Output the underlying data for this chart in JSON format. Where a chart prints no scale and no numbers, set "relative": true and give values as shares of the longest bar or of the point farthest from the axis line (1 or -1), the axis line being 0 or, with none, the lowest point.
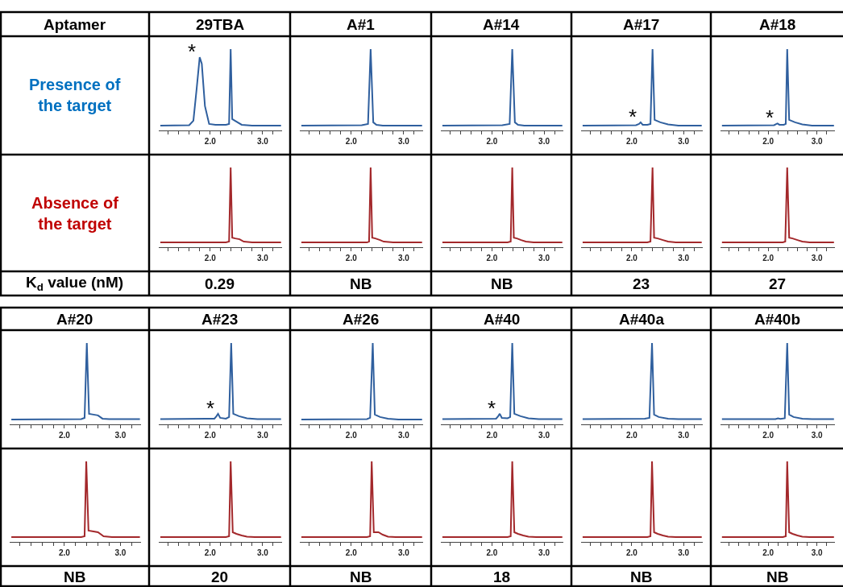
{
  "chart_data": [
    {
      "type": "other",
      "annotations": [
        "Aptamer",
        "Presence of the target",
        "Absence of the target",
        "K$_{d}$ value (nM)"
      ],
      "colors": [
        null,
        "#0070c0",
        "#c00000",
        null
      ]
    },
    {
      "type": "line",
      "title": "29TBA",
      "color": "#2f5f9e",
      "relative": true,
      "xlim": [
        1.02,
        3.37
      ],
      "xticks": [
        {
          "value": 1.2,
          "label": null
        },
        {
          "value": 1.4,
          "label": null
        },
        {
          "value": 1.6,
          "label": null
        },
        {
          "value": 1.8,
          "label": null
        },
        {
          "value": 2.0,
          "label": "2.0"
        },
        {
          "value": 2.2,
          "label": null
        },
        {
          "value": 2.4,
          "label": null
        },
        {
          "value": 2.6,
          "label": null
        },
        {
          "value": 2.8,
          "label": null
        },
        {
          "value": 3.0,
          "label": "3.0"
        },
        {
          "value": 3.2,
          "label": null
        }
      ],
      "x": [
        1.05,
        1.6,
        1.68,
        1.74,
        1.8,
        1.84,
        1.9,
        1.98,
        2.1,
        2.3,
        2.36,
        2.39,
        2.42,
        2.47,
        2.6,
        2.8,
        3.35
      ],
      "values": [
        0.06,
        0.065,
        0.12,
        0.5,
        0.9,
        0.82,
        0.3,
        0.08,
        0.07,
        0.07,
        0.08,
        1,
        0.14,
        0.12,
        0.07,
        0.06,
        0.06
      ],
      "annotations": [
        {
          "text": "*",
          "x": 1.8,
          "y": 0.9
        }
      ]
    },
    {
      "type": "line",
      "color": "#a3282b",
      "relative": true,
      "xlim": [
        1.02,
        3.37
      ],
      "xticks": [
        {
          "value": 1.2,
          "label": null
        },
        {
          "value": 1.4,
          "label": null
        },
        {
          "value": 1.6,
          "label": null
        },
        {
          "value": 1.8,
          "label": null
        },
        {
          "value": 2.0,
          "label": "2.0"
        },
        {
          "value": 2.2,
          "label": null
        },
        {
          "value": 2.4,
          "label": null
        },
        {
          "value": 2.6,
          "label": null
        },
        {
          "value": 2.8,
          "label": null
        },
        {
          "value": 3.0,
          "label": "3.0"
        },
        {
          "value": 3.2,
          "label": null
        }
      ],
      "x": [
        1.05,
        2.3,
        2.36,
        2.39,
        2.42,
        2.48,
        2.56,
        2.64,
        2.8,
        3.35
      ],
      "values": [
        0.06,
        0.06,
        0.07,
        1,
        0.12,
        0.11,
        0.1,
        0.07,
        0.06,
        0.06
      ],
      "annotations": [
        "0.29"
      ]
    },
    {
      "type": "line",
      "title": "A#1",
      "color": "#2f5f9e",
      "relative": true,
      "xlim": [
        1.02,
        3.37
      ],
      "xticks": [
        {
          "value": 1.2,
          "label": null
        },
        {
          "value": 1.4,
          "label": null
        },
        {
          "value": 1.6,
          "label": null
        },
        {
          "value": 1.8,
          "label": null
        },
        {
          "value": 2.0,
          "label": "2.0"
        },
        {
          "value": 2.2,
          "label": null
        },
        {
          "value": 2.4,
          "label": null
        },
        {
          "value": 2.6,
          "label": null
        },
        {
          "value": 2.8,
          "label": null
        },
        {
          "value": 3.0,
          "label": "3.0"
        },
        {
          "value": 3.2,
          "label": null
        }
      ],
      "x": [
        1.05,
        2.2,
        2.32,
        2.37,
        2.42,
        2.48,
        2.6,
        3.35
      ],
      "values": [
        0.06,
        0.065,
        0.08,
        1,
        0.1,
        0.07,
        0.06,
        0.06
      ]
    },
    {
      "type": "line",
      "color": "#a3282b",
      "relative": true,
      "xlim": [
        1.02,
        3.37
      ],
      "xticks": [
        {
          "value": 1.2,
          "label": null
        },
        {
          "value": 1.4,
          "label": null
        },
        {
          "value": 1.6,
          "label": null
        },
        {
          "value": 1.8,
          "label": null
        },
        {
          "value": 2.0,
          "label": "2.0"
        },
        {
          "value": 2.2,
          "label": null
        },
        {
          "value": 2.4,
          "label": null
        },
        {
          "value": 2.6,
          "label": null
        },
        {
          "value": 2.8,
          "label": null
        },
        {
          "value": 3.0,
          "label": "3.0"
        },
        {
          "value": 3.2,
          "label": null
        }
      ],
      "x": [
        1.05,
        2.3,
        2.34,
        2.37,
        2.4,
        2.46,
        2.55,
        2.62,
        2.8,
        3.35
      ],
      "values": [
        0.06,
        0.06,
        0.07,
        1,
        0.12,
        0.11,
        0.09,
        0.07,
        0.06,
        0.06
      ],
      "annotations": [
        "NB"
      ]
    },
    {
      "type": "line",
      "title": "A#14",
      "color": "#2f5f9e",
      "relative": true,
      "xlim": [
        1.02,
        3.37
      ],
      "xticks": [
        {
          "value": 1.2,
          "label": null
        },
        {
          "value": 1.4,
          "label": null
        },
        {
          "value": 1.6,
          "label": null
        },
        {
          "value": 1.8,
          "label": null
        },
        {
          "value": 2.0,
          "label": "2.0"
        },
        {
          "value": 2.2,
          "label": null
        },
        {
          "value": 2.4,
          "label": null
        },
        {
          "value": 2.6,
          "label": null
        },
        {
          "value": 2.8,
          "label": null
        },
        {
          "value": 3.0,
          "label": "3.0"
        },
        {
          "value": 3.2,
          "label": null
        }
      ],
      "x": [
        1.05,
        2.2,
        2.34,
        2.39,
        2.44,
        2.5,
        2.62,
        3.35
      ],
      "values": [
        0.06,
        0.065,
        0.08,
        1,
        0.1,
        0.07,
        0.06,
        0.06
      ]
    },
    {
      "type": "line",
      "color": "#a3282b",
      "relative": true,
      "xlim": [
        1.02,
        3.37
      ],
      "xticks": [
        {
          "value": 1.2,
          "label": null
        },
        {
          "value": 1.4,
          "label": null
        },
        {
          "value": 1.6,
          "label": null
        },
        {
          "value": 1.8,
          "label": null
        },
        {
          "value": 2.0,
          "label": "2.0"
        },
        {
          "value": 2.2,
          "label": null
        },
        {
          "value": 2.4,
          "label": null
        },
        {
          "value": 2.6,
          "label": null
        },
        {
          "value": 2.8,
          "label": null
        },
        {
          "value": 3.0,
          "label": "3.0"
        },
        {
          "value": 3.2,
          "label": null
        }
      ],
      "x": [
        1.05,
        2.3,
        2.36,
        2.39,
        2.42,
        2.48,
        2.56,
        2.65,
        2.8,
        3.35
      ],
      "values": [
        0.06,
        0.06,
        0.07,
        1,
        0.12,
        0.11,
        0.09,
        0.07,
        0.06,
        0.06
      ],
      "annotations": [
        "NB"
      ]
    },
    {
      "type": "line",
      "title": "A#17",
      "color": "#2f5f9e",
      "relative": true,
      "xlim": [
        1.02,
        3.37
      ],
      "xticks": [
        {
          "value": 1.2,
          "label": null
        },
        {
          "value": 1.4,
          "label": null
        },
        {
          "value": 1.6,
          "label": null
        },
        {
          "value": 1.8,
          "label": null
        },
        {
          "value": 2.0,
          "label": "2.0"
        },
        {
          "value": 2.2,
          "label": null
        },
        {
          "value": 2.4,
          "label": null
        },
        {
          "value": 2.6,
          "label": null
        },
        {
          "value": 2.8,
          "label": null
        },
        {
          "value": 3.0,
          "label": "3.0"
        },
        {
          "value": 3.2,
          "label": null
        }
      ],
      "x": [
        1.05,
        2.08,
        2.14,
        2.17,
        2.21,
        2.3,
        2.36,
        2.4,
        2.44,
        2.55,
        2.7,
        2.9,
        3.35
      ],
      "values": [
        0.06,
        0.065,
        0.08,
        0.1,
        0.07,
        0.07,
        0.08,
        1,
        0.13,
        0.1,
        0.075,
        0.06,
        0.06
      ],
      "annotations": [
        {
          "text": "*",
          "x": 2.17,
          "y": 0.1
        }
      ]
    },
    {
      "type": "line",
      "color": "#a3282b",
      "relative": true,
      "xlim": [
        1.02,
        3.37
      ],
      "xticks": [
        {
          "value": 1.2,
          "label": null
        },
        {
          "value": 1.4,
          "label": null
        },
        {
          "value": 1.6,
          "label": null
        },
        {
          "value": 1.8,
          "label": null
        },
        {
          "value": 2.0,
          "label": "2.0"
        },
        {
          "value": 2.2,
          "label": null
        },
        {
          "value": 2.4,
          "label": null
        },
        {
          "value": 2.6,
          "label": null
        },
        {
          "value": 2.8,
          "label": null
        },
        {
          "value": 3.0,
          "label": "3.0"
        },
        {
          "value": 3.2,
          "label": null
        }
      ],
      "x": [
        1.05,
        2.3,
        2.36,
        2.4,
        2.43,
        2.5,
        2.6,
        2.7,
        2.85,
        3.35
      ],
      "values": [
        0.06,
        0.06,
        0.07,
        1,
        0.12,
        0.11,
        0.09,
        0.07,
        0.06,
        0.06
      ],
      "annotations": [
        "23"
      ]
    },
    {
      "type": "line",
      "title": "A#18",
      "color": "#2f5f9e",
      "relative": true,
      "xlim": [
        1.02,
        3.37
      ],
      "xticks": [
        {
          "value": 1.2,
          "label": null
        },
        {
          "value": 1.4,
          "label": null
        },
        {
          "value": 1.6,
          "label": null
        },
        {
          "value": 1.8,
          "label": null
        },
        {
          "value": 2.0,
          "label": "2.0"
        },
        {
          "value": 2.2,
          "label": null
        },
        {
          "value": 2.4,
          "label": null
        },
        {
          "value": 2.6,
          "label": null
        },
        {
          "value": 2.8,
          "label": null
        },
        {
          "value": 3.0,
          "label": "3.0"
        },
        {
          "value": 3.2,
          "label": null
        }
      ],
      "x": [
        1.05,
        2.12,
        2.17,
        2.19,
        2.23,
        2.32,
        2.36,
        2.39,
        2.43,
        2.55,
        2.7,
        2.9,
        3.35
      ],
      "values": [
        0.06,
        0.065,
        0.08,
        0.085,
        0.07,
        0.07,
        0.08,
        1,
        0.13,
        0.1,
        0.075,
        0.06,
        0.06
      ],
      "annotations": [
        {
          "text": "*",
          "x": 2.19,
          "y": 0.085
        }
      ]
    },
    {
      "type": "line",
      "color": "#a3282b",
      "relative": true,
      "xlim": [
        1.02,
        3.37
      ],
      "xticks": [
        {
          "value": 1.2,
          "label": null
        },
        {
          "value": 1.4,
          "label": null
        },
        {
          "value": 1.6,
          "label": null
        },
        {
          "value": 1.8,
          "label": null
        },
        {
          "value": 2.0,
          "label": "2.0"
        },
        {
          "value": 2.2,
          "label": null
        },
        {
          "value": 2.4,
          "label": null
        },
        {
          "value": 2.6,
          "label": null
        },
        {
          "value": 2.8,
          "label": null
        },
        {
          "value": 3.0,
          "label": "3.0"
        },
        {
          "value": 3.2,
          "label": null
        }
      ],
      "x": [
        1.05,
        2.3,
        2.35,
        2.39,
        2.43,
        2.5,
        2.6,
        2.7,
        2.85,
        3.35
      ],
      "values": [
        0.06,
        0.06,
        0.07,
        1,
        0.12,
        0.11,
        0.09,
        0.07,
        0.06,
        0.06
      ],
      "annotations": [
        "27"
      ]
    },
    {
      "type": "line",
      "title": "A#20",
      "color": "#2f5f9e",
      "relative": true,
      "xlim": [
        1.02,
        3.37
      ],
      "xticks": [
        {
          "value": 1.2,
          "label": null
        },
        {
          "value": 1.4,
          "label": null
        },
        {
          "value": 1.6,
          "label": null
        },
        {
          "value": 1.8,
          "label": null
        },
        {
          "value": 2.0,
          "label": "2.0"
        },
        {
          "value": 2.2,
          "label": null
        },
        {
          "value": 2.4,
          "label": null
        },
        {
          "value": 2.6,
          "label": null
        },
        {
          "value": 2.8,
          "label": null
        },
        {
          "value": 3.0,
          "label": "3.0"
        },
        {
          "value": 3.2,
          "label": null
        }
      ],
      "x": [
        1.05,
        2.3,
        2.36,
        2.4,
        2.44,
        2.52,
        2.6,
        2.68,
        2.8,
        3.35
      ],
      "values": [
        0.06,
        0.065,
        0.08,
        1,
        0.13,
        0.12,
        0.11,
        0.07,
        0.065,
        0.065
      ]
    },
    {
      "type": "line",
      "color": "#a3282b",
      "relative": true,
      "xlim": [
        1.02,
        3.37
      ],
      "xticks": [
        {
          "value": 1.2,
          "label": null
        },
        {
          "value": 1.4,
          "label": null
        },
        {
          "value": 1.6,
          "label": null
        },
        {
          "value": 1.8,
          "label": null
        },
        {
          "value": 2.0,
          "label": "2.0"
        },
        {
          "value": 2.2,
          "label": null
        },
        {
          "value": 2.4,
          "label": null
        },
        {
          "value": 2.6,
          "label": null
        },
        {
          "value": 2.8,
          "label": null
        },
        {
          "value": 3.0,
          "label": "3.0"
        },
        {
          "value": 3.2,
          "label": null
        }
      ],
      "x": [
        1.05,
        2.3,
        2.36,
        2.39,
        2.43,
        2.52,
        2.6,
        2.7,
        2.85,
        3.35
      ],
      "values": [
        0.06,
        0.06,
        0.07,
        1,
        0.14,
        0.13,
        0.12,
        0.07,
        0.06,
        0.06
      ],
      "annotations": [
        "NB"
      ]
    },
    {
      "type": "line",
      "title": "A#23",
      "color": "#2f5f9e",
      "relative": true,
      "xlim": [
        1.02,
        3.37
      ],
      "xticks": [
        {
          "value": 1.2,
          "label": null
        },
        {
          "value": 1.4,
          "label": null
        },
        {
          "value": 1.6,
          "label": null
        },
        {
          "value": 1.8,
          "label": null
        },
        {
          "value": 2.0,
          "label": "2.0"
        },
        {
          "value": 2.2,
          "label": null
        },
        {
          "value": 2.4,
          "label": null
        },
        {
          "value": 2.6,
          "label": null
        },
        {
          "value": 2.8,
          "label": null
        },
        {
          "value": 3.0,
          "label": "3.0"
        },
        {
          "value": 3.2,
          "label": null
        }
      ],
      "x": [
        1.05,
        2.08,
        2.12,
        2.15,
        2.19,
        2.3,
        2.36,
        2.4,
        2.44,
        2.55,
        2.7,
        2.9,
        3.35
      ],
      "values": [
        0.065,
        0.07,
        0.1,
        0.13,
        0.08,
        0.07,
        0.09,
        1,
        0.13,
        0.1,
        0.075,
        0.065,
        0.065
      ],
      "annotations": [
        {
          "text": "*",
          "x": 2.15,
          "y": 0.13
        }
      ]
    },
    {
      "type": "line",
      "color": "#a3282b",
      "relative": true,
      "xlim": [
        1.02,
        3.37
      ],
      "xticks": [
        {
          "value": 1.2,
          "label": null
        },
        {
          "value": 1.4,
          "label": null
        },
        {
          "value": 1.6,
          "label": null
        },
        {
          "value": 1.8,
          "label": null
        },
        {
          "value": 2.0,
          "label": "2.0"
        },
        {
          "value": 2.2,
          "label": null
        },
        {
          "value": 2.4,
          "label": null
        },
        {
          "value": 2.6,
          "label": null
        },
        {
          "value": 2.8,
          "label": null
        },
        {
          "value": 3.0,
          "label": "3.0"
        },
        {
          "value": 3.2,
          "label": null
        }
      ],
      "x": [
        1.05,
        2.3,
        2.36,
        2.39,
        2.43,
        2.5,
        2.6,
        2.7,
        2.85,
        3.35
      ],
      "values": [
        0.06,
        0.06,
        0.07,
        1,
        0.12,
        0.1,
        0.08,
        0.065,
        0.06,
        0.06
      ],
      "annotations": [
        "20"
      ]
    },
    {
      "type": "line",
      "title": "A#26",
      "color": "#2f5f9e",
      "relative": true,
      "xlim": [
        1.02,
        3.37
      ],
      "xticks": [
        {
          "value": 1.2,
          "label": null
        },
        {
          "value": 1.4,
          "label": null
        },
        {
          "value": 1.6,
          "label": null
        },
        {
          "value": 1.8,
          "label": null
        },
        {
          "value": 2.0,
          "label": "2.0"
        },
        {
          "value": 2.2,
          "label": null
        },
        {
          "value": 2.4,
          "label": null
        },
        {
          "value": 2.6,
          "label": null
        },
        {
          "value": 2.8,
          "label": null
        },
        {
          "value": 3.0,
          "label": "3.0"
        },
        {
          "value": 3.2,
          "label": null
        }
      ],
      "x": [
        1.05,
        2.3,
        2.36,
        2.41,
        2.45,
        2.55,
        2.7,
        2.9,
        3.35
      ],
      "values": [
        0.06,
        0.065,
        0.08,
        1,
        0.12,
        0.09,
        0.07,
        0.06,
        0.06
      ]
    },
    {
      "type": "line",
      "color": "#a3282b",
      "relative": true,
      "xlim": [
        1.02,
        3.37
      ],
      "xticks": [
        {
          "value": 1.2,
          "label": null
        },
        {
          "value": 1.4,
          "label": null
        },
        {
          "value": 1.6,
          "label": null
        },
        {
          "value": 1.8,
          "label": null
        },
        {
          "value": 2.0,
          "label": "2.0"
        },
        {
          "value": 2.2,
          "label": null
        },
        {
          "value": 2.4,
          "label": null
        },
        {
          "value": 2.6,
          "label": null
        },
        {
          "value": 2.8,
          "label": null
        },
        {
          "value": 3.0,
          "label": "3.0"
        },
        {
          "value": 3.2,
          "label": null
        }
      ],
      "x": [
        1.05,
        2.3,
        2.36,
        2.39,
        2.43,
        2.52,
        2.6,
        2.7,
        2.85,
        3.35
      ],
      "values": [
        0.06,
        0.06,
        0.07,
        1,
        0.12,
        0.12,
        0.09,
        0.065,
        0.06,
        0.06
      ],
      "annotations": [
        "NB"
      ]
    },
    {
      "type": "line",
      "title": "A#40",
      "color": "#2f5f9e",
      "relative": true,
      "xlim": [
        1.02,
        3.37
      ],
      "xticks": [
        {
          "value": 1.2,
          "label": null
        },
        {
          "value": 1.4,
          "label": null
        },
        {
          "value": 1.6,
          "label": null
        },
        {
          "value": 1.8,
          "label": null
        },
        {
          "value": 2.0,
          "label": "2.0"
        },
        {
          "value": 2.2,
          "label": null
        },
        {
          "value": 2.4,
          "label": null
        },
        {
          "value": 2.6,
          "label": null
        },
        {
          "value": 2.8,
          "label": null
        },
        {
          "value": 3.0,
          "label": "3.0"
        },
        {
          "value": 3.2,
          "label": null
        }
      ],
      "x": [
        1.05,
        2.08,
        2.12,
        2.15,
        2.19,
        2.3,
        2.35,
        2.39,
        2.43,
        2.55,
        2.7,
        2.9,
        3.35
      ],
      "values": [
        0.065,
        0.07,
        0.1,
        0.13,
        0.08,
        0.075,
        0.09,
        1,
        0.13,
        0.1,
        0.075,
        0.065,
        0.065
      ],
      "annotations": [
        {
          "text": "*",
          "x": 2.15,
          "y": 0.13
        }
      ]
    },
    {
      "type": "line",
      "color": "#a3282b",
      "relative": true,
      "xlim": [
        1.02,
        3.37
      ],
      "xticks": [
        {
          "value": 1.2,
          "label": null
        },
        {
          "value": 1.4,
          "label": null
        },
        {
          "value": 1.6,
          "label": null
        },
        {
          "value": 1.8,
          "label": null
        },
        {
          "value": 2.0,
          "label": "2.0"
        },
        {
          "value": 2.2,
          "label": null
        },
        {
          "value": 2.4,
          "label": null
        },
        {
          "value": 2.6,
          "label": null
        },
        {
          "value": 2.8,
          "label": null
        },
        {
          "value": 3.0,
          "label": "3.0"
        },
        {
          "value": 3.2,
          "label": null
        }
      ],
      "x": [
        1.05,
        2.3,
        2.36,
        2.39,
        2.43,
        2.5,
        2.6,
        2.7,
        2.85,
        3.35
      ],
      "values": [
        0.06,
        0.06,
        0.07,
        1,
        0.12,
        0.1,
        0.08,
        0.065,
        0.06,
        0.06
      ],
      "annotations": [
        "18"
      ]
    },
    {
      "type": "line",
      "title": "A#40a",
      "color": "#2f5f9e",
      "relative": true,
      "xlim": [
        1.02,
        3.37
      ],
      "xticks": [
        {
          "value": 1.2,
          "label": null
        },
        {
          "value": 1.4,
          "label": null
        },
        {
          "value": 1.6,
          "label": null
        },
        {
          "value": 1.8,
          "label": null
        },
        {
          "value": 2.0,
          "label": "2.0"
        },
        {
          "value": 2.2,
          "label": null
        },
        {
          "value": 2.4,
          "label": null
        },
        {
          "value": 2.6,
          "label": null
        },
        {
          "value": 2.8,
          "label": null
        },
        {
          "value": 3.0,
          "label": "3.0"
        },
        {
          "value": 3.2,
          "label": null
        }
      ],
      "x": [
        1.05,
        2.25,
        2.34,
        2.39,
        2.43,
        2.52,
        2.7,
        2.9,
        3.35
      ],
      "values": [
        0.065,
        0.07,
        0.08,
        1,
        0.12,
        0.09,
        0.07,
        0.065,
        0.065
      ]
    },
    {
      "type": "line",
      "color": "#a3282b",
      "relative": true,
      "xlim": [
        1.02,
        3.37
      ],
      "xticks": [
        {
          "value": 1.2,
          "label": null
        },
        {
          "value": 1.4,
          "label": null
        },
        {
          "value": 1.6,
          "label": null
        },
        {
          "value": 1.8,
          "label": null
        },
        {
          "value": 2.0,
          "label": "2.0"
        },
        {
          "value": 2.2,
          "label": null
        },
        {
          "value": 2.4,
          "label": null
        },
        {
          "value": 2.6,
          "label": null
        },
        {
          "value": 2.8,
          "label": null
        },
        {
          "value": 3.0,
          "label": "3.0"
        },
        {
          "value": 3.2,
          "label": null
        }
      ],
      "x": [
        1.05,
        2.3,
        2.36,
        2.39,
        2.43,
        2.5,
        2.6,
        2.7,
        2.85,
        3.35
      ],
      "values": [
        0.06,
        0.06,
        0.07,
        1,
        0.12,
        0.1,
        0.08,
        0.065,
        0.06,
        0.06
      ],
      "annotations": [
        "NB"
      ]
    },
    {
      "type": "line",
      "title": "A#40b",
      "color": "#2f5f9e",
      "relative": true,
      "xlim": [
        1.02,
        3.37
      ],
      "xticks": [
        {
          "value": 1.2,
          "label": null
        },
        {
          "value": 1.4,
          "label": null
        },
        {
          "value": 1.6,
          "label": null
        },
        {
          "value": 1.8,
          "label": null
        },
        {
          "value": 2.0,
          "label": "2.0"
        },
        {
          "value": 2.2,
          "label": null
        },
        {
          "value": 2.4,
          "label": null
        },
        {
          "value": 2.6,
          "label": null
        },
        {
          "value": 2.8,
          "label": null
        },
        {
          "value": 3.0,
          "label": "3.0"
        },
        {
          "value": 3.2,
          "label": null
        }
      ],
      "x": [
        1.05,
        2.15,
        2.2,
        2.25,
        2.34,
        2.39,
        2.43,
        2.52,
        2.7,
        2.9,
        3.35
      ],
      "values": [
        0.065,
        0.065,
        0.075,
        0.068,
        0.075,
        1,
        0.12,
        0.09,
        0.07,
        0.065,
        0.065
      ]
    },
    {
      "type": "line",
      "color": "#a3282b",
      "relative": true,
      "xlim": [
        1.02,
        3.37
      ],
      "xticks": [
        {
          "value": 1.2,
          "label": null
        },
        {
          "value": 1.4,
          "label": null
        },
        {
          "value": 1.6,
          "label": null
        },
        {
          "value": 1.8,
          "label": null
        },
        {
          "value": 2.0,
          "label": "2.0"
        },
        {
          "value": 2.2,
          "label": null
        },
        {
          "value": 2.4,
          "label": null
        },
        {
          "value": 2.6,
          "label": null
        },
        {
          "value": 2.8,
          "label": null
        },
        {
          "value": 3.0,
          "label": "3.0"
        },
        {
          "value": 3.2,
          "label": null
        }
      ],
      "x": [
        1.05,
        2.3,
        2.36,
        2.39,
        2.43,
        2.5,
        2.6,
        2.7,
        2.85,
        3.35
      ],
      "values": [
        0.06,
        0.06,
        0.07,
        1,
        0.12,
        0.1,
        0.08,
        0.065,
        0.06,
        0.06
      ],
      "annotations": [
        "NB"
      ]
    }
  ]
}
